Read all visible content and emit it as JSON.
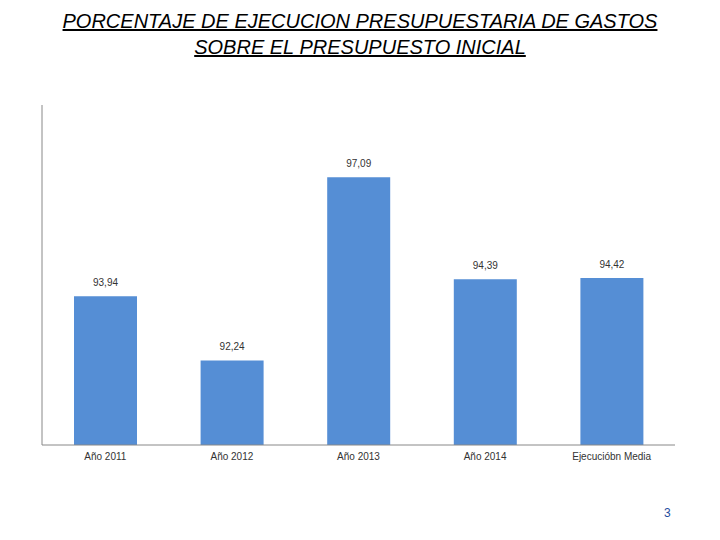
{
  "chart_data": {
    "type": "bar",
    "title": "PORCENTAJE DE EJECUCION PRESUPUESTARIA DE GASTOS SOBRE EL PRESUPUESTO INICIAL",
    "categories": [
      "Año 2011",
      "Año 2012",
      "Año 2013",
      "Año 2014",
      "Ejecucióbn Media"
    ],
    "values": [
      93.94,
      92.24,
      97.09,
      94.39,
      94.42
    ],
    "value_labels": [
      "93,94",
      "92,24",
      "97,09",
      "94,39",
      "94,42"
    ],
    "data_labels": true,
    "color": "#558ed5",
    "ylim": [
      90,
      99
    ],
    "grid": false,
    "tick_labels": "x"
  },
  "page_number": "3"
}
